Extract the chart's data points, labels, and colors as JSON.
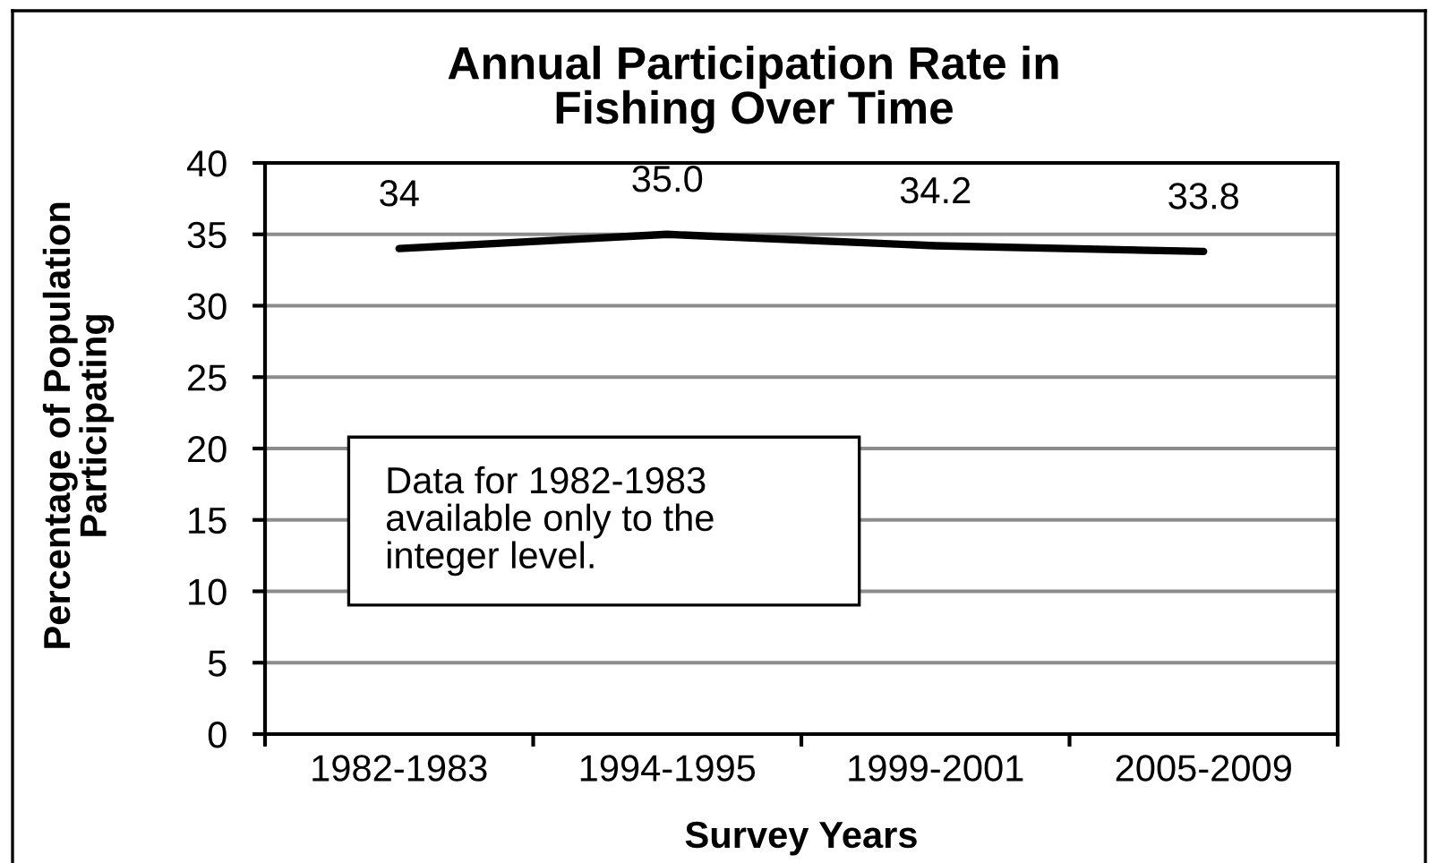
{
  "chart_data": {
    "type": "line",
    "title": "Annual Participation Rate in\nFishing Over Time",
    "xlabel": "Survey Years",
    "ylabel": "Percentage of Population\nParticipating",
    "categories": [
      "1982-1983",
      "1994-1995",
      "1999-2001",
      "2005-2009"
    ],
    "values": [
      34,
      35.0,
      34.2,
      33.8
    ],
    "value_labels": [
      "34",
      "35.0",
      "34.2",
      "33.8"
    ],
    "color": "#000000",
    "ylim": [
      0,
      40
    ],
    "yticks": [
      0,
      5,
      10,
      15,
      20,
      25,
      30,
      35,
      40
    ],
    "grid": "y",
    "annotations": [
      "Data for 1982-1983\navailable only to the\ninteger level."
    ]
  }
}
